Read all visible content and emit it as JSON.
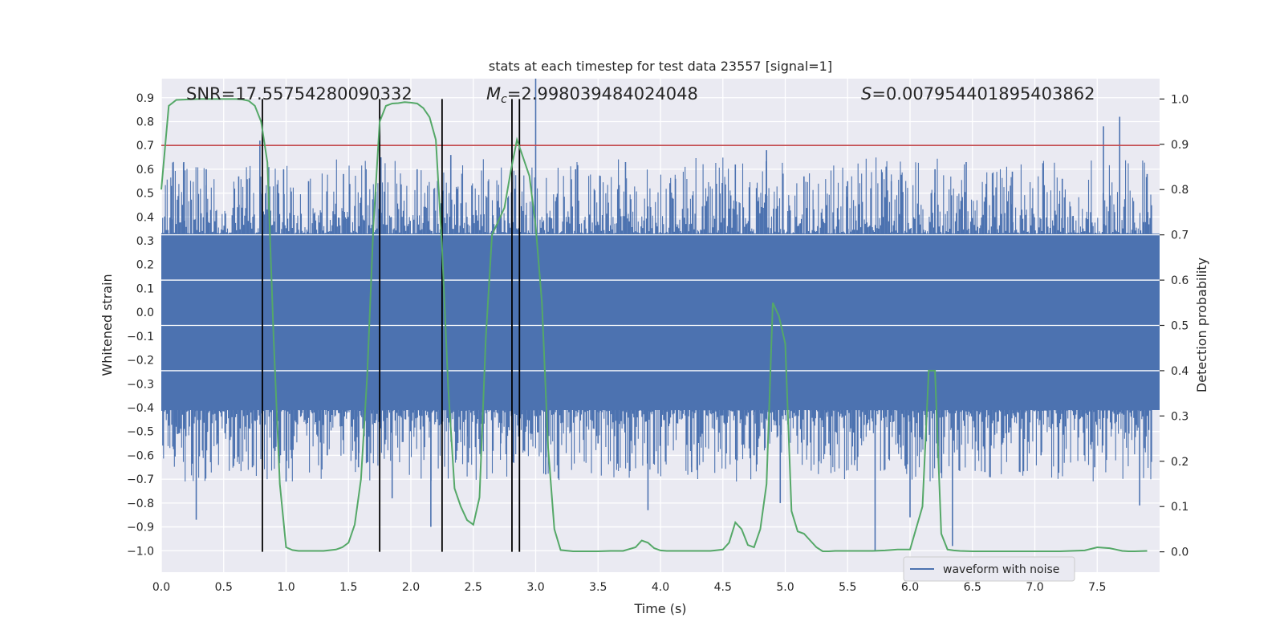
{
  "chart_data": {
    "type": "line",
    "title": "stats at each timestep for test data 23557 [signal=1]",
    "xlabel": "Time (s)",
    "ylabel": "Whitened strain",
    "y2label": "Detection probability",
    "xlim": [
      0.0,
      8.0
    ],
    "ylim": [
      -1.09,
      0.98
    ],
    "y2lim": [
      -0.045,
      1.045
    ],
    "x_ticks": [
      "0.0",
      "0.5",
      "1.0",
      "1.5",
      "2.0",
      "2.5",
      "3.0",
      "3.5",
      "4.0",
      "4.5",
      "5.0",
      "5.5",
      "6.0",
      "6.5",
      "7.0",
      "7.5"
    ],
    "y_ticks": [
      "0.9",
      "0.8",
      "0.7",
      "0.6",
      "0.5",
      "0.4",
      "0.3",
      "0.2",
      "0.1",
      "0.0",
      "−0.1",
      "−0.2",
      "−0.3",
      "−0.4",
      "−0.5",
      "−0.6",
      "−0.7",
      "−0.8",
      "−0.9",
      "−1.0"
    ],
    "y2_ticks": [
      "1.0",
      "0.9",
      "0.8",
      "0.7",
      "0.6",
      "0.5",
      "0.4",
      "0.3",
      "0.2",
      "0.1",
      "0.0"
    ],
    "annotations": {
      "snr": "SNR=17.55754280090332",
      "mc_symbol": "M",
      "mc_sub": "c",
      "mc_value": "=2.998039484024048",
      "s_symbol": "S",
      "s_value": "=0.007954401895403862"
    },
    "threshold": 0.7,
    "threshold_color": "#c44e52",
    "strain_color": "#4c72b0",
    "prob_color": "#55a868",
    "strain_series": {
      "name": "waveform with noise",
      "body_low": -0.41,
      "body_high": 0.33,
      "spikes": [
        {
          "x": 0.08,
          "y": 0.53
        },
        {
          "x": 0.12,
          "y": -0.48
        },
        {
          "x": 0.18,
          "y": 0.63
        },
        {
          "x": 0.28,
          "y": -0.87
        },
        {
          "x": 0.36,
          "y": 0.6
        },
        {
          "x": 0.45,
          "y": -0.55
        },
        {
          "x": 0.62,
          "y": 0.57
        },
        {
          "x": 0.73,
          "y": -0.65
        },
        {
          "x": 0.79,
          "y": 0.72
        },
        {
          "x": 0.9,
          "y": -0.57
        },
        {
          "x": 0.98,
          "y": 0.6
        },
        {
          "x": 1.0,
          "y": -0.71
        },
        {
          "x": 1.18,
          "y": 0.55
        },
        {
          "x": 1.33,
          "y": -0.6
        },
        {
          "x": 1.46,
          "y": 0.58
        },
        {
          "x": 1.58,
          "y": -0.65
        },
        {
          "x": 1.76,
          "y": 0.65
        },
        {
          "x": 1.85,
          "y": -0.78
        },
        {
          "x": 2.05,
          "y": 0.6
        },
        {
          "x": 2.16,
          "y": -0.9
        },
        {
          "x": 2.32,
          "y": 0.66
        },
        {
          "x": 2.46,
          "y": -0.63
        },
        {
          "x": 2.62,
          "y": 0.55
        },
        {
          "x": 2.72,
          "y": -0.55
        },
        {
          "x": 3.0,
          "y": 0.98
        },
        {
          "x": 3.08,
          "y": -0.68
        },
        {
          "x": 3.32,
          "y": 0.6
        },
        {
          "x": 3.5,
          "y": -0.55
        },
        {
          "x": 3.72,
          "y": 0.63
        },
        {
          "x": 3.9,
          "y": -0.83
        },
        {
          "x": 4.12,
          "y": 0.56
        },
        {
          "x": 4.25,
          "y": -0.67
        },
        {
          "x": 4.6,
          "y": 0.62
        },
        {
          "x": 4.75,
          "y": -0.6
        },
        {
          "x": 4.85,
          "y": 0.68
        },
        {
          "x": 4.96,
          "y": -0.8
        },
        {
          "x": 5.15,
          "y": 0.57
        },
        {
          "x": 5.35,
          "y": -0.55
        },
        {
          "x": 5.5,
          "y": 0.55
        },
        {
          "x": 5.72,
          "y": -1.0
        },
        {
          "x": 5.85,
          "y": 0.55
        },
        {
          "x": 6.0,
          "y": -0.86
        },
        {
          "x": 6.2,
          "y": 0.6
        },
        {
          "x": 6.34,
          "y": -0.98
        },
        {
          "x": 6.45,
          "y": 0.63
        },
        {
          "x": 6.6,
          "y": -0.67
        },
        {
          "x": 6.82,
          "y": 0.59
        },
        {
          "x": 7.05,
          "y": -0.6
        },
        {
          "x": 7.22,
          "y": 0.56
        },
        {
          "x": 7.48,
          "y": -0.65
        },
        {
          "x": 7.55,
          "y": 0.78
        },
        {
          "x": 7.68,
          "y": 0.82
        },
        {
          "x": 7.84,
          "y": -0.81
        },
        {
          "x": 7.9,
          "y": 0.58
        }
      ]
    },
    "probability_series": {
      "name": "Detection probability",
      "x": [
        0.0,
        0.06,
        0.12,
        0.2,
        0.3,
        0.4,
        0.5,
        0.6,
        0.65,
        0.7,
        0.75,
        0.8,
        0.85,
        0.9,
        0.95,
        1.0,
        1.05,
        1.1,
        1.2,
        1.3,
        1.4,
        1.45,
        1.5,
        1.55,
        1.6,
        1.65,
        1.7,
        1.75,
        1.8,
        1.85,
        1.9,
        1.95,
        2.0,
        2.05,
        2.1,
        2.15,
        2.2,
        2.25,
        2.3,
        2.35,
        2.4,
        2.45,
        2.5,
        2.55,
        2.6,
        2.65,
        2.7,
        2.75,
        2.8,
        2.85,
        2.9,
        2.95,
        3.0,
        3.05,
        3.1,
        3.15,
        3.2,
        3.3,
        3.4,
        3.5,
        3.6,
        3.7,
        3.8,
        3.85,
        3.9,
        3.95,
        4.0,
        4.05,
        4.1,
        4.2,
        4.3,
        4.4,
        4.5,
        4.55,
        4.6,
        4.65,
        4.7,
        4.75,
        4.8,
        4.85,
        4.9,
        4.95,
        5.0,
        5.05,
        5.1,
        5.15,
        5.2,
        5.25,
        5.3,
        5.35,
        5.4,
        5.5,
        5.6,
        5.7,
        5.8,
        5.9,
        6.0,
        6.1,
        6.15,
        6.2,
        6.25,
        6.3,
        6.35,
        6.4,
        6.5,
        6.6,
        6.7,
        6.8,
        7.0,
        7.2,
        7.4,
        7.5,
        7.6,
        7.7,
        7.75,
        7.8,
        7.9
      ],
      "values": [
        0.8,
        0.985,
        0.998,
        0.999,
        1.0,
        1.0,
        1.0,
        1.0,
        0.999,
        0.996,
        0.985,
        0.95,
        0.86,
        0.47,
        0.15,
        0.01,
        0.004,
        0.002,
        0.002,
        0.002,
        0.005,
        0.01,
        0.02,
        0.06,
        0.16,
        0.39,
        0.72,
        0.95,
        0.985,
        0.99,
        0.991,
        0.993,
        0.992,
        0.99,
        0.98,
        0.96,
        0.91,
        0.67,
        0.36,
        0.14,
        0.1,
        0.07,
        0.06,
        0.12,
        0.47,
        0.7,
        0.73,
        0.76,
        0.84,
        0.91,
        0.87,
        0.83,
        0.72,
        0.55,
        0.23,
        0.05,
        0.004,
        0.001,
        0.001,
        0.001,
        0.002,
        0.002,
        0.01,
        0.025,
        0.02,
        0.008,
        0.003,
        0.002,
        0.002,
        0.002,
        0.002,
        0.002,
        0.005,
        0.02,
        0.065,
        0.05,
        0.015,
        0.01,
        0.05,
        0.15,
        0.55,
        0.52,
        0.46,
        0.09,
        0.045,
        0.04,
        0.025,
        0.01,
        0.001,
        0.001,
        0.002,
        0.002,
        0.002,
        0.002,
        0.003,
        0.005,
        0.005,
        0.1,
        0.4,
        0.4,
        0.04,
        0.005,
        0.003,
        0.002,
        0.001,
        0.001,
        0.001,
        0.001,
        0.001,
        0.001,
        0.003,
        0.01,
        0.008,
        0.002,
        0.001,
        0.001,
        0.002
      ]
    },
    "vertical_markers": [
      0.81,
      1.75,
      2.25,
      2.81,
      2.87
    ],
    "legend": {
      "label": "waveform with noise",
      "placement": "lower-right"
    }
  }
}
